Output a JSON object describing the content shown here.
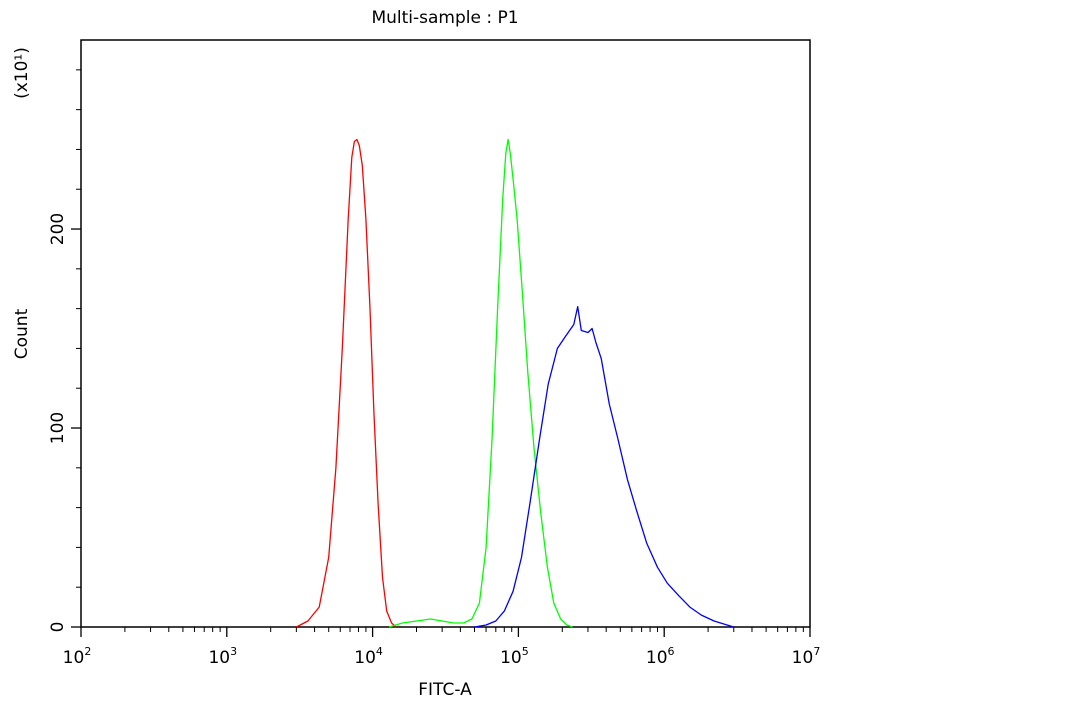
{
  "chart_data": {
    "type": "line",
    "title": "Multi-sample : P1",
    "xlabel": "FITC-A",
    "ylabel": "Count",
    "y_multiplier": "(x10¹)",
    "x_scale": "log",
    "xlim": [
      100,
      10000000
    ],
    "ylim": [
      0,
      295
    ],
    "x_ticks": [
      {
        "value": 100,
        "base": "10",
        "exp": "2"
      },
      {
        "value": 1000,
        "base": "10",
        "exp": "3"
      },
      {
        "value": 10000,
        "base": "10",
        "exp": "4"
      },
      {
        "value": 100000,
        "base": "10",
        "exp": "5"
      },
      {
        "value": 1000000,
        "base": "10",
        "exp": "6"
      },
      {
        "value": 10000000,
        "base": "10",
        "exp": "7"
      }
    ],
    "y_ticks": [
      {
        "value": 0,
        "label": "0"
      },
      {
        "value": 100,
        "label": "100"
      },
      {
        "value": 200,
        "label": "200"
      }
    ],
    "grid": false,
    "series": [
      {
        "color": "#ff0000",
        "x": [
          3000,
          3600,
          4300,
          5000,
          5600,
          6200,
          6800,
          7200,
          7500,
          7800,
          8100,
          8500,
          9000,
          9600,
          10200,
          10900,
          11700,
          12500,
          13500,
          14500
        ],
        "y": [
          0,
          3,
          10,
          35,
          80,
          140,
          205,
          236,
          244,
          245,
          242,
          232,
          205,
          160,
          108,
          62,
          25,
          8,
          2,
          0
        ]
      },
      {
        "color": "#00ff00",
        "x": [
          13000,
          16000,
          20000,
          25000,
          30000,
          36000,
          42000,
          48000,
          54000,
          60000,
          66000,
          72000,
          78000,
          82000,
          85000,
          88000,
          92000,
          98000,
          106000,
          116000,
          128000,
          142000,
          158000,
          175000,
          195000,
          215000,
          235000
        ],
        "y": [
          0,
          2,
          3,
          4,
          3,
          2,
          2,
          4,
          12,
          40,
          95,
          160,
          215,
          238,
          245,
          238,
          225,
          205,
          170,
          128,
          90,
          58,
          30,
          12,
          4,
          1,
          0
        ]
      },
      {
        "color": "#0000ff",
        "x": [
          50000,
          60000,
          70000,
          80000,
          92000,
          105000,
          120000,
          140000,
          160000,
          185000,
          210000,
          240000,
          255000,
          270000,
          300000,
          320000,
          340000,
          370000,
          420000,
          480000,
          560000,
          650000,
          760000,
          900000,
          1050000,
          1250000,
          1500000,
          1800000,
          2200000,
          2700000,
          3000000
        ],
        "y": [
          0,
          1,
          3,
          8,
          18,
          35,
          62,
          95,
          122,
          140,
          146,
          152,
          161,
          149,
          148,
          150,
          143,
          135,
          112,
          95,
          74,
          58,
          42,
          30,
          22,
          16,
          10,
          6,
          3,
          1,
          0
        ]
      }
    ]
  }
}
